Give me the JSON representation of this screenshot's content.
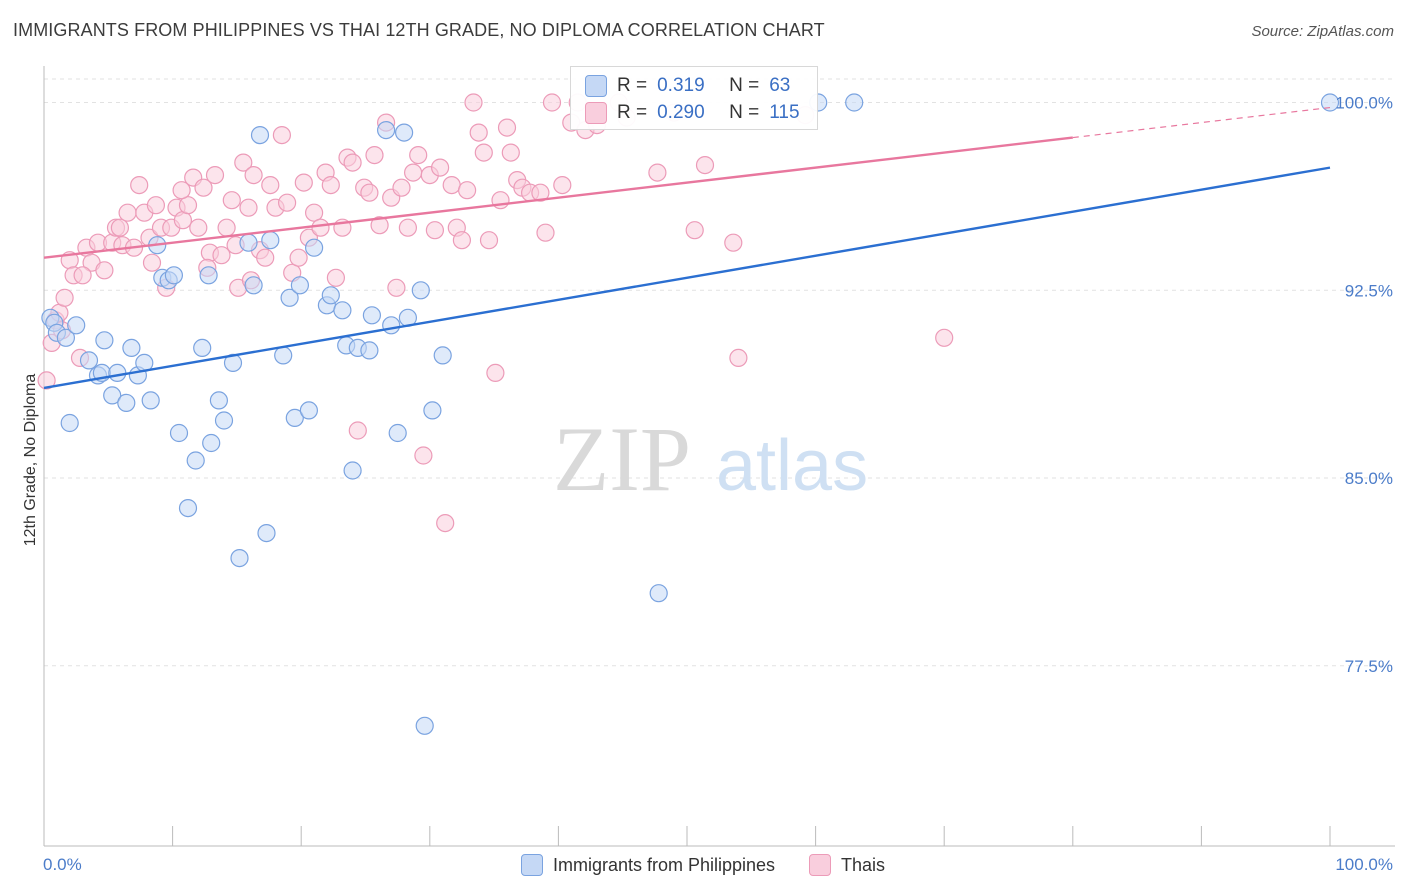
{
  "title": "IMMIGRANTS FROM PHILIPPINES VS THAI 12TH GRADE, NO DIPLOMA CORRELATION CHART",
  "source": "Source: ZipAtlas.com",
  "watermark": {
    "zip": "ZIP",
    "atlas": "atlas"
  },
  "legend_box": {
    "rows": [
      {
        "r_label": "R =",
        "r_value": "0.319",
        "n_label": "N =",
        "n_value": "63"
      },
      {
        "r_label": "R =",
        "r_value": "0.290",
        "n_label": "N =",
        "n_value": "115"
      }
    ]
  },
  "chart_data": {
    "type": "scatter",
    "title": "IMMIGRANTS FROM PHILIPPINES VS THAI 12TH GRADE, NO DIPLOMA CORRELATION CHART",
    "xlabel": "",
    "ylabel": "12th Grade, No Diploma",
    "xlim": [
      0,
      100
    ],
    "ylim": [
      70.3,
      101.3
    ],
    "x_tick_labels": [
      "0.0%",
      "100.0%"
    ],
    "y_ticks": [
      77.5,
      85.0,
      92.5,
      100.0
    ],
    "y_tick_labels": [
      "77.5%",
      "85.0%",
      "92.5%",
      "100.0%"
    ],
    "grid": true,
    "legend_position": "bottom-center",
    "series": [
      {
        "name": "Immigrants from Philippines",
        "color": "#7aa3e0",
        "fill": "#c5d8f5",
        "line_color": "#2b6fd1",
        "r": 0.319,
        "n": 63,
        "trend": {
          "x": [
            0,
            100
          ],
          "y": [
            88.6,
            97.4
          ],
          "dashed_from": null
        },
        "points": [
          [
            0.5,
            91.4
          ],
          [
            0.8,
            91.2
          ],
          [
            1.0,
            90.8
          ],
          [
            1.7,
            90.6
          ],
          [
            2.5,
            91.1
          ],
          [
            3.5,
            89.7
          ],
          [
            4.2,
            89.1
          ],
          [
            4.5,
            89.2
          ],
          [
            4.7,
            90.5
          ],
          [
            5.3,
            88.3
          ],
          [
            5.7,
            89.2
          ],
          [
            6.4,
            88.0
          ],
          [
            6.8,
            90.2
          ],
          [
            7.3,
            89.1
          ],
          [
            7.8,
            89.6
          ],
          [
            8.3,
            88.1
          ],
          [
            8.8,
            94.3
          ],
          [
            9.2,
            93.0
          ],
          [
            9.7,
            92.9
          ],
          [
            10.1,
            93.1
          ],
          [
            10.5,
            86.8
          ],
          [
            11.2,
            83.8
          ],
          [
            11.8,
            85.7
          ],
          [
            12.3,
            90.2
          ],
          [
            12.8,
            93.1
          ],
          [
            13.0,
            86.4
          ],
          [
            13.6,
            88.1
          ],
          [
            14.0,
            87.3
          ],
          [
            14.7,
            89.6
          ],
          [
            15.2,
            81.8
          ],
          [
            15.9,
            94.4
          ],
          [
            16.3,
            92.7
          ],
          [
            16.8,
            98.7
          ],
          [
            17.3,
            82.8
          ],
          [
            17.6,
            94.5
          ],
          [
            18.6,
            89.9
          ],
          [
            19.1,
            92.2
          ],
          [
            19.5,
            87.4
          ],
          [
            19.9,
            92.7
          ],
          [
            20.6,
            87.7
          ],
          [
            21.0,
            94.2
          ],
          [
            22.0,
            91.9
          ],
          [
            22.3,
            92.3
          ],
          [
            23.2,
            91.7
          ],
          [
            23.5,
            90.3
          ],
          [
            24.0,
            85.3
          ],
          [
            24.4,
            90.2
          ],
          [
            25.3,
            90.1
          ],
          [
            25.5,
            91.5
          ],
          [
            26.6,
            98.9
          ],
          [
            27.0,
            91.1
          ],
          [
            27.5,
            86.8
          ],
          [
            28.0,
            98.8
          ],
          [
            28.3,
            91.4
          ],
          [
            29.3,
            92.5
          ],
          [
            29.6,
            75.1
          ],
          [
            30.2,
            87.7
          ],
          [
            31.0,
            89.9
          ],
          [
            47.8,
            80.4
          ],
          [
            60.2,
            100.0
          ],
          [
            63.0,
            100.0
          ],
          [
            100.0,
            100.0
          ],
          [
            2.0,
            87.2
          ]
        ]
      },
      {
        "name": "Thais",
        "color": "#ec9bb8",
        "fill": "#f9cedd",
        "line_color": "#e8779e",
        "r": 0.29,
        "n": 115,
        "trend": {
          "x": [
            0,
            100
          ],
          "y": [
            93.8,
            99.8
          ],
          "dashed_from": 80
        },
        "points": [
          [
            0.2,
            88.9
          ],
          [
            0.6,
            90.4
          ],
          [
            0.9,
            91.3
          ],
          [
            1.2,
            91.6
          ],
          [
            1.6,
            92.2
          ],
          [
            2.0,
            93.7
          ],
          [
            2.3,
            93.1
          ],
          [
            2.8,
            89.8
          ],
          [
            3.3,
            94.2
          ],
          [
            3.7,
            93.6
          ],
          [
            4.2,
            94.4
          ],
          [
            4.7,
            93.3
          ],
          [
            5.3,
            94.4
          ],
          [
            5.6,
            95.0
          ],
          [
            6.1,
            94.3
          ],
          [
            6.5,
            95.6
          ],
          [
            7.0,
            94.2
          ],
          [
            7.4,
            96.7
          ],
          [
            7.8,
            95.6
          ],
          [
            8.2,
            94.6
          ],
          [
            8.7,
            95.9
          ],
          [
            9.1,
            95.0
          ],
          [
            9.5,
            92.6
          ],
          [
            9.9,
            95.0
          ],
          [
            10.3,
            95.8
          ],
          [
            10.8,
            95.3
          ],
          [
            11.2,
            95.9
          ],
          [
            11.6,
            97.0
          ],
          [
            12.0,
            95.0
          ],
          [
            12.4,
            96.6
          ],
          [
            12.9,
            94.0
          ],
          [
            13.3,
            97.1
          ],
          [
            13.8,
            93.9
          ],
          [
            14.2,
            95.0
          ],
          [
            14.6,
            96.1
          ],
          [
            15.1,
            92.6
          ],
          [
            15.5,
            97.6
          ],
          [
            15.9,
            95.8
          ],
          [
            16.3,
            97.1
          ],
          [
            16.8,
            94.1
          ],
          [
            17.2,
            93.8
          ],
          [
            17.6,
            96.7
          ],
          [
            18.0,
            95.8
          ],
          [
            18.5,
            98.7
          ],
          [
            18.9,
            96.0
          ],
          [
            19.3,
            93.2
          ],
          [
            19.8,
            93.8
          ],
          [
            20.2,
            96.8
          ],
          [
            20.6,
            94.6
          ],
          [
            21.0,
            95.6
          ],
          [
            21.5,
            95.0
          ],
          [
            21.9,
            97.2
          ],
          [
            22.3,
            96.7
          ],
          [
            22.7,
            93.0
          ],
          [
            23.2,
            95.0
          ],
          [
            23.6,
            97.8
          ],
          [
            24.0,
            97.6
          ],
          [
            24.4,
            86.9
          ],
          [
            24.9,
            96.6
          ],
          [
            25.3,
            96.4
          ],
          [
            25.7,
            97.9
          ],
          [
            26.1,
            95.1
          ],
          [
            26.6,
            99.2
          ],
          [
            27.0,
            96.2
          ],
          [
            27.4,
            92.6
          ],
          [
            27.8,
            96.6
          ],
          [
            28.3,
            95.0
          ],
          [
            28.7,
            97.2
          ],
          [
            29.1,
            97.9
          ],
          [
            29.5,
            85.9
          ],
          [
            30.0,
            97.1
          ],
          [
            30.4,
            94.9
          ],
          [
            30.8,
            97.4
          ],
          [
            31.2,
            83.2
          ],
          [
            31.7,
            96.7
          ],
          [
            32.1,
            95.0
          ],
          [
            32.5,
            94.5
          ],
          [
            32.9,
            96.5
          ],
          [
            33.4,
            100.0
          ],
          [
            33.8,
            98.8
          ],
          [
            34.2,
            98.0
          ],
          [
            34.6,
            94.5
          ],
          [
            35.1,
            89.2
          ],
          [
            35.5,
            96.1
          ],
          [
            36.0,
            99.0
          ],
          [
            36.3,
            98.0
          ],
          [
            36.8,
            96.9
          ],
          [
            37.2,
            96.6
          ],
          [
            37.8,
            96.4
          ],
          [
            38.6,
            96.4
          ],
          [
            39.0,
            94.8
          ],
          [
            39.5,
            100.0
          ],
          [
            40.3,
            96.7
          ],
          [
            41.0,
            99.2
          ],
          [
            41.5,
            100.0
          ],
          [
            42.1,
            98.9
          ],
          [
            43.0,
            99.1
          ],
          [
            44.7,
            100.0
          ],
          [
            45.3,
            99.4
          ],
          [
            47.7,
            97.2
          ],
          [
            49.0,
            99.6
          ],
          [
            50.6,
            94.9
          ],
          [
            51.4,
            97.5
          ],
          [
            53.6,
            94.4
          ],
          [
            54.0,
            89.8
          ],
          [
            70.0,
            90.6
          ],
          [
            59.2,
            99.5
          ],
          [
            1.4,
            90.9
          ],
          [
            3.0,
            93.1
          ],
          [
            5.9,
            95.0
          ],
          [
            8.4,
            93.6
          ],
          [
            10.7,
            96.5
          ],
          [
            12.7,
            93.4
          ],
          [
            14.9,
            94.3
          ],
          [
            16.1,
            92.9
          ]
        ]
      }
    ]
  }
}
